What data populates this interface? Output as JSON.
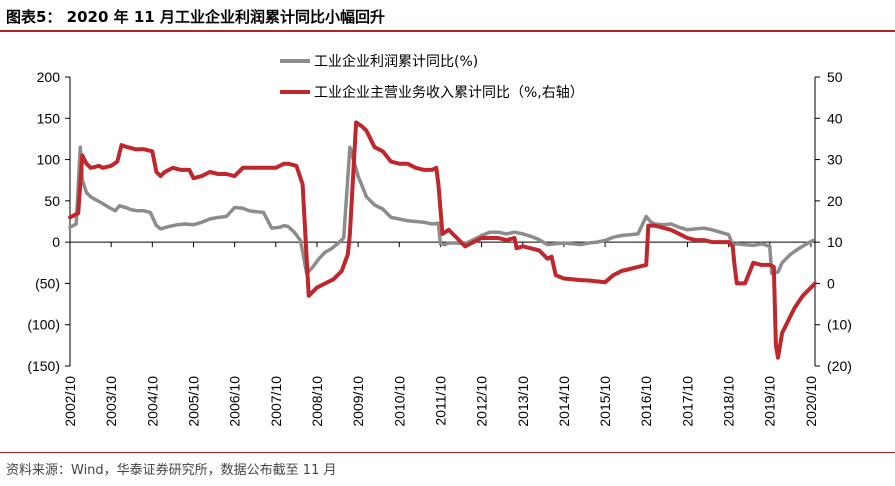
{
  "title": "图表5：  2020 年 11 月工业企业利润累计同比小幅回升",
  "source": "资料来源：Wind，华泰证券研究所，数据公布截至 11 月",
  "chart_data": {
    "type": "line",
    "title": "",
    "x_labels": [
      "2002/10",
      "2003/10",
      "2004/10",
      "2005/10",
      "2006/10",
      "2007/10",
      "2008/10",
      "2009/10",
      "2010/10",
      "2011/10",
      "2012/10",
      "2013/10",
      "2014/10",
      "2015/10",
      "2016/10",
      "2017/10",
      "2018/10",
      "2019/10",
      "2020/10"
    ],
    "y_left": {
      "min": -150,
      "max": 200,
      "ticks": [
        200,
        150,
        100,
        50,
        0,
        -50,
        -100,
        -150
      ],
      "tick_labels": [
        "200",
        "150",
        "100",
        "50",
        "0",
        "(50)",
        "(100)",
        "(150)"
      ]
    },
    "y_right": {
      "min": -20,
      "max": 50,
      "ticks": [
        50,
        40,
        30,
        20,
        10,
        0,
        -10,
        -20
      ],
      "tick_labels": [
        "50",
        "40",
        "30",
        "20",
        "10",
        "0",
        "(10)",
        "(20)"
      ]
    },
    "legend_position": "top-center",
    "series": [
      {
        "name": "工业企业利润累计同比(%)",
        "axis": "left",
        "color": "#8c8c8c",
        "x": [
          2002.8,
          2002.95,
          2003.05,
          2003.1,
          2003.2,
          2003.3,
          2003.4,
          2003.55,
          2003.75,
          2003.9,
          2004.0,
          2004.15,
          2004.3,
          2004.45,
          2004.6,
          2004.75,
          2004.9,
          2005.0,
          2005.2,
          2005.4,
          2005.6,
          2005.8,
          2006.0,
          2006.2,
          2006.4,
          2006.6,
          2006.8,
          2007.0,
          2007.15,
          2007.3,
          2007.5,
          2007.7,
          2007.9,
          2008.0,
          2008.1,
          2008.25,
          2008.4,
          2008.55,
          2008.7,
          2008.85,
          2009.0,
          2009.15,
          2009.3,
          2009.45,
          2009.6,
          2009.8,
          2010.0,
          2010.2,
          2010.4,
          2010.6,
          2010.8,
          2011.0,
          2011.2,
          2011.4,
          2011.6,
          2011.75,
          2011.8,
          2011.9,
          2012.0,
          2012.2,
          2012.4,
          2012.6,
          2012.8,
          2013.0,
          2013.2,
          2013.4,
          2013.6,
          2013.8,
          2014.0,
          2014.2,
          2014.4,
          2014.6,
          2014.8,
          2015.0,
          2015.2,
          2015.4,
          2015.6,
          2015.8,
          2016.0,
          2016.2,
          2016.4,
          2016.6,
          2016.8,
          2016.9,
          2017.0,
          2017.2,
          2017.4,
          2017.6,
          2017.8,
          2018.0,
          2018.2,
          2018.4,
          2018.6,
          2018.8,
          2018.9,
          2019.0,
          2019.2,
          2019.4,
          2019.6,
          2019.8,
          2019.85,
          2020.0,
          2020.1,
          2020.3,
          2020.5,
          2020.7,
          2020.85
        ],
        "y": [
          18,
          22,
          115,
          75,
          60,
          55,
          52,
          48,
          42,
          38,
          44,
          42,
          39,
          38,
          38,
          36,
          20,
          16,
          19,
          21,
          22,
          21,
          24,
          28,
          30,
          31,
          42,
          41,
          38,
          37,
          36,
          17,
          18,
          20,
          19,
          12,
          2,
          -38,
          -30,
          -20,
          -12,
          -8,
          -2,
          5,
          115,
          80,
          55,
          45,
          40,
          30,
          28,
          26,
          25,
          24,
          22,
          23,
          -2,
          -3,
          -1,
          -1,
          -2,
          3,
          8,
          12,
          12,
          10,
          12,
          10,
          7,
          3,
          -3,
          -2,
          -1,
          -2,
          -3,
          -1,
          0,
          2,
          6,
          8,
          9,
          10,
          31,
          25,
          22,
          21,
          22,
          18,
          15,
          16,
          17,
          15,
          12,
          9,
          -3,
          -2,
          -3,
          -4,
          -2,
          -5,
          -38,
          -36,
          -25,
          -15,
          -8,
          -2,
          2
        ]
      },
      {
        "name": "工业企业主营业务收入累计同比（%,右轴）",
        "axis": "right",
        "color": "#c0272d",
        "x": [
          2002.8,
          2002.9,
          2003.0,
          2003.1,
          2003.2,
          2003.3,
          2003.4,
          2003.5,
          2003.6,
          2003.8,
          2003.95,
          2004.05,
          2004.2,
          2004.4,
          2004.6,
          2004.8,
          2004.9,
          2005.0,
          2005.1,
          2005.3,
          2005.5,
          2005.7,
          2005.8,
          2006.0,
          2006.2,
          2006.4,
          2006.6,
          2006.8,
          2007.0,
          2007.2,
          2007.4,
          2007.6,
          2007.8,
          2008.0,
          2008.1,
          2008.3,
          2008.45,
          2008.6,
          2008.7,
          2008.8,
          2009.0,
          2009.2,
          2009.4,
          2009.55,
          2009.6,
          2009.75,
          2009.9,
          2010.0,
          2010.2,
          2010.4,
          2010.6,
          2010.8,
          2011.0,
          2011.2,
          2011.4,
          2011.6,
          2011.7,
          2011.75,
          2011.85,
          2012.0,
          2012.2,
          2012.4,
          2012.6,
          2012.8,
          2013.0,
          2013.2,
          2013.4,
          2013.6,
          2013.65,
          2013.8,
          2014.0,
          2014.2,
          2014.4,
          2014.5,
          2014.6,
          2014.8,
          2015.0,
          2015.2,
          2015.4,
          2015.6,
          2015.8,
          2016.0,
          2016.2,
          2016.4,
          2016.6,
          2016.8,
          2016.85,
          2017.0,
          2017.2,
          2017.4,
          2017.6,
          2017.8,
          2018.0,
          2018.2,
          2018.4,
          2018.6,
          2018.8,
          2018.9,
          2018.95,
          2019.0,
          2019.05,
          2019.2,
          2019.4,
          2019.6,
          2019.8,
          2019.9,
          2019.95,
          2020.0,
          2020.1,
          2020.2,
          2020.4,
          2020.6,
          2020.8,
          2020.9
        ],
        "y": [
          16,
          16.5,
          17,
          31,
          29,
          28,
          28.2,
          28.5,
          28,
          28.5,
          29.5,
          33.5,
          33,
          32.5,
          32.5,
          32,
          27,
          26,
          27,
          28,
          27.5,
          27.5,
          25.5,
          26,
          27,
          26.5,
          26.5,
          26,
          28,
          28,
          28,
          28,
          28,
          29,
          29,
          28.5,
          24,
          -3,
          -2,
          -1,
          0,
          1,
          3,
          7,
          12,
          39,
          38,
          37,
          33,
          32,
          29.5,
          29,
          29,
          28,
          27.5,
          27.5,
          28,
          24,
          12,
          13,
          11,
          9,
          10,
          11,
          11,
          11,
          10.5,
          11,
          8.5,
          9,
          8.5,
          8,
          6,
          6.5,
          2,
          1.2,
          1,
          0.8,
          0.7,
          0.5,
          0.3,
          2,
          3,
          3.5,
          4,
          4.5,
          14,
          14,
          13.5,
          13,
          12,
          11,
          10.5,
          10.5,
          10,
          10,
          10,
          9,
          4,
          0,
          0,
          0,
          5,
          4.5,
          4.5,
          4,
          -15,
          -18,
          -12,
          -10,
          -6,
          -3,
          -1,
          0
        ]
      }
    ]
  }
}
